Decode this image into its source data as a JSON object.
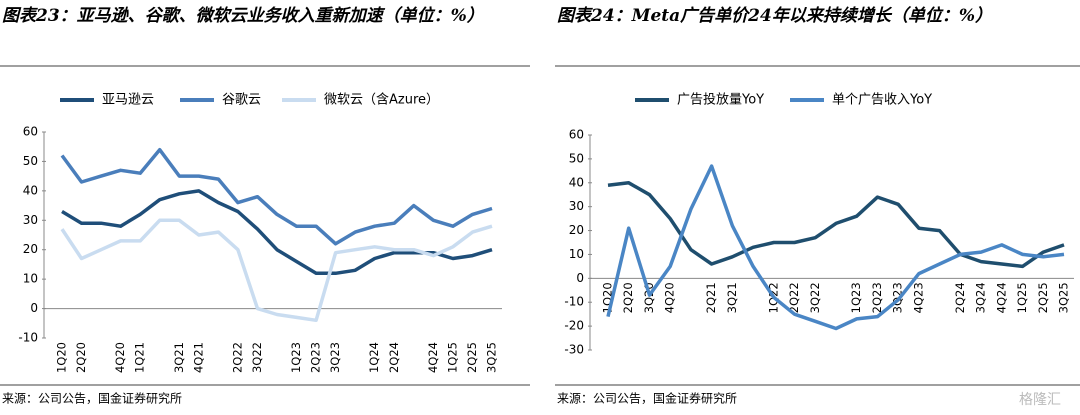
{
  "chart_data": [
    {
      "type": "line",
      "title": "图表23：亚马逊、谷歌、微软云业务收入重新加速（单位：%）",
      "categories": [
        "1Q20",
        "2Q20",
        null,
        "4Q20",
        "1Q21",
        null,
        "3Q21",
        "4Q21",
        null,
        "2Q22",
        "3Q22",
        null,
        "1Q23",
        "2Q23",
        "3Q23",
        null,
        "1Q24",
        "2Q24",
        null,
        "4Q24",
        "1Q25",
        "2Q25",
        "3Q25"
      ],
      "series": [
        {
          "name": "亚马逊云",
          "color": "#1f4e79",
          "values": [
            33,
            29,
            29,
            28,
            32,
            37,
            39,
            40,
            36,
            33,
            27,
            20,
            16,
            12,
            12,
            13,
            17,
            19,
            19,
            19,
            17,
            18,
            20
          ]
        },
        {
          "name": "谷歌云",
          "color": "#4a7ebb",
          "values": [
            52,
            43,
            45,
            47,
            46,
            54,
            45,
            45,
            44,
            36,
            38,
            32,
            28,
            28,
            22,
            26,
            28,
            29,
            35,
            30,
            28,
            32,
            34
          ]
        },
        {
          "name": "微软云（含Azure）",
          "color": "#c9dcf0",
          "values": [
            27,
            17,
            20,
            23,
            23,
            30,
            30,
            25,
            26,
            20,
            0,
            -2,
            -3,
            -4,
            19,
            20,
            21,
            20,
            20,
            18,
            21,
            26,
            28
          ]
        }
      ],
      "ylim": [
        -10,
        60
      ],
      "yticks": [
        -10,
        0,
        10,
        20,
        30,
        40,
        50,
        60
      ],
      "source": "来源：公司公告，国金证券研究所"
    },
    {
      "type": "line",
      "title": "图表24：Meta广告单价24年以来持续增长（单位：%）",
      "categories": [
        "1Q20",
        "2Q20",
        "3Q20",
        "4Q20",
        null,
        "2Q21",
        "3Q21",
        null,
        "1Q22",
        "2Q22",
        "3Q22",
        null,
        "1Q23",
        "2Q23",
        "3Q23",
        "4Q23",
        null,
        "2Q24",
        "3Q24",
        "4Q24",
        "1Q25",
        "2Q25",
        "3Q25"
      ],
      "series": [
        {
          "name": "广告投放量YoY",
          "color": "#1f4e6e",
          "values": [
            39,
            40,
            35,
            25,
            12,
            6,
            9,
            13,
            15,
            15,
            17,
            23,
            26,
            34,
            31,
            21,
            20,
            10,
            7,
            6,
            5,
            11,
            14
          ]
        },
        {
          "name": "单个广告收入YoY",
          "color": "#4a86c5",
          "values": [
            -16,
            21,
            -7,
            5,
            29,
            47,
            22,
            5,
            -8,
            -15,
            -18,
            -21,
            -17,
            -16,
            -9,
            2,
            6,
            10,
            11,
            14,
            10,
            9,
            10
          ]
        }
      ],
      "ylim": [
        -30,
        60
      ],
      "yticks": [
        -30,
        -20,
        -10,
        0,
        10,
        20,
        30,
        40,
        50,
        60
      ],
      "source": "来源：公司公告，国金证券研究所"
    }
  ],
  "watermark": "格隆汇"
}
